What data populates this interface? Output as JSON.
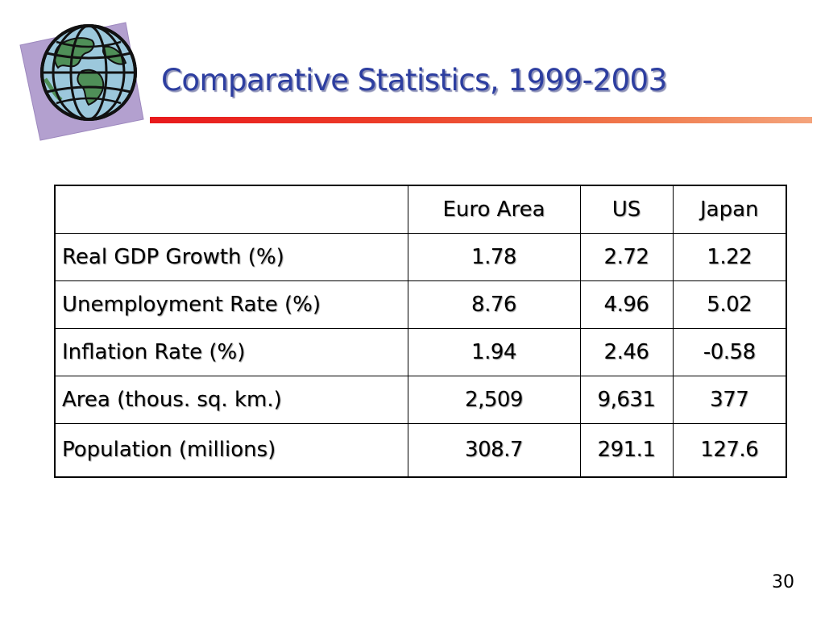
{
  "slide": {
    "title": "Comparative Statistics, 1999-2003",
    "page_number": "30",
    "icon": "globe-icon"
  },
  "colors": {
    "title": "#2d3ea0",
    "rule_start": "#e8191c",
    "rule_end": "#f4a47c",
    "globe_backdrop": "#b3a0cf"
  },
  "table": {
    "columns": [
      "",
      "Euro Area",
      "US",
      "Japan"
    ],
    "rows": [
      {
        "label": "Real GDP Growth (%)",
        "values": [
          "1.78",
          "2.72",
          "1.22"
        ]
      },
      {
        "label": "Unemployment Rate (%)",
        "values": [
          "8.76",
          "4.96",
          "5.02"
        ]
      },
      {
        "label": "Inflation Rate (%)",
        "values": [
          "1.94",
          "2.46",
          "-0.58"
        ]
      },
      {
        "label": "Area (thous. sq. km.)",
        "values": [
          "2,509",
          "9,631",
          "377"
        ]
      },
      {
        "label": "Population (millions)",
        "values": [
          "308.7",
          "291.1",
          "127.6"
        ]
      }
    ]
  }
}
